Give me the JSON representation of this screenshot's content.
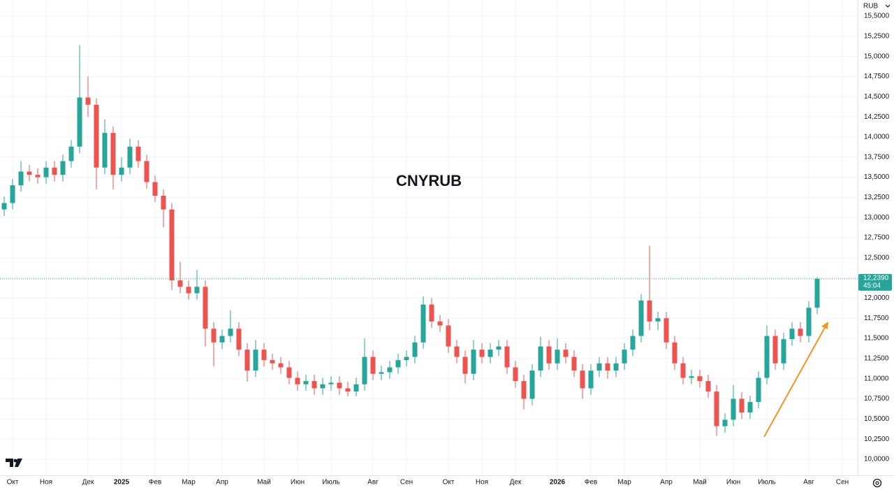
{
  "chart_data": {
    "type": "candlestick",
    "title": "CNYRUB",
    "currency": "RUB",
    "categories": [
      null,
      "Окт",
      null,
      null,
      null,
      "Ноя",
      null,
      null,
      null,
      null,
      "Дек",
      null,
      null,
      null,
      "2025",
      null,
      null,
      null,
      "Фев",
      null,
      null,
      null,
      "Мар",
      null,
      null,
      null,
      "Апр",
      null,
      null,
      null,
      null,
      "Май",
      null,
      null,
      null,
      "Июн",
      null,
      null,
      null,
      "Июль",
      null,
      null,
      null,
      null,
      "Авг",
      null,
      null,
      null,
      "Сен",
      null,
      null,
      null,
      null,
      "Окт",
      null,
      null,
      null,
      "Ноя",
      null,
      null,
      null,
      "Дек",
      null,
      null,
      null,
      null,
      "2026",
      null,
      null,
      null,
      "Фев",
      null,
      null,
      null,
      "Мар",
      null,
      null,
      null,
      null,
      "Апр",
      null,
      null,
      null,
      "Май",
      null,
      null,
      null,
      "Июн",
      null,
      null,
      null,
      "Июль",
      null,
      null,
      null,
      null,
      "Авг",
      null,
      null,
      null,
      "Сен",
      null
    ],
    "open": [
      13.1,
      13.18,
      13.4,
      13.57,
      13.53,
      13.5,
      13.62,
      13.53,
      13.7,
      13.88,
      14.49,
      14.4,
      13.62,
      14.05,
      13.53,
      13.62,
      13.88,
      13.7,
      13.44,
      13.27,
      13.1,
      12.22,
      12.14,
      12.06,
      12.14,
      11.62,
      11.45,
      11.53,
      11.62,
      11.36,
      11.1,
      11.36,
      11.23,
      11.19,
      11.14,
      11.01,
      10.93,
      10.97,
      10.88,
      10.93,
      10.95,
      10.88,
      10.84,
      10.93,
      11.27,
      11.06,
      11.08,
      11.14,
      11.23,
      11.27,
      11.45,
      11.92,
      11.71,
      11.66,
      11.4,
      11.27,
      11.06,
      11.36,
      11.27,
      11.36,
      11.4,
      11.14,
      10.97,
      10.75,
      11.1,
      11.4,
      11.19,
      11.36,
      11.27,
      11.1,
      10.88,
      11.1,
      11.19,
      11.1,
      11.19,
      11.36,
      11.53,
      11.97,
      11.71,
      11.75,
      11.45,
      11.19,
      11.01,
      11.03,
      10.97,
      10.84,
      10.41,
      10.49,
      10.75,
      10.58,
      10.71,
      11.01,
      11.53,
      11.19,
      11.49,
      11.62,
      11.53,
      11.88,
      null,
      null,
      null,
      null
    ],
    "high": [
      13.26,
      13.48,
      13.7,
      13.65,
      13.61,
      13.7,
      13.7,
      13.78,
      13.96,
      15.14,
      14.75,
      14.48,
      14.22,
      14.13,
      13.75,
      13.98,
      13.96,
      13.78,
      13.52,
      13.35,
      13.18,
      12.45,
      12.22,
      12.35,
      12.22,
      11.7,
      11.61,
      11.85,
      11.7,
      11.44,
      11.48,
      11.44,
      11.31,
      11.27,
      11.22,
      11.09,
      11.05,
      11.05,
      11.01,
      11.03,
      11.03,
      10.96,
      11.01,
      11.5,
      11.35,
      11.16,
      11.22,
      11.31,
      11.35,
      11.53,
      12.02,
      12.0,
      11.79,
      11.74,
      11.48,
      11.35,
      11.48,
      11.44,
      11.44,
      11.48,
      11.48,
      11.22,
      11.05,
      11.18,
      11.52,
      11.48,
      11.5,
      11.44,
      11.35,
      11.18,
      11.18,
      11.27,
      11.27,
      11.27,
      11.44,
      11.61,
      12.05,
      12.65,
      11.83,
      11.83,
      11.53,
      11.27,
      11.11,
      11.11,
      11.05,
      10.92,
      10.57,
      10.92,
      10.83,
      10.79,
      11.09,
      11.66,
      11.61,
      11.57,
      11.7,
      11.7,
      11.96,
      12.26,
      null,
      null,
      null,
      null
    ],
    "low": [
      13.02,
      13.1,
      13.32,
      13.45,
      13.42,
      13.42,
      13.45,
      13.45,
      13.62,
      13.8,
      14.25,
      13.35,
      13.54,
      13.35,
      13.45,
      13.54,
      13.62,
      13.36,
      13.19,
      12.88,
      12.1,
      12.06,
      11.98,
      11.98,
      11.4,
      11.15,
      11.37,
      11.45,
      11.28,
      10.96,
      11.02,
      11.15,
      11.11,
      11.06,
      10.93,
      10.85,
      10.85,
      10.8,
      10.8,
      10.85,
      10.8,
      10.78,
      10.78,
      10.85,
      10.98,
      10.98,
      11.0,
      11.06,
      11.15,
      11.19,
      11.37,
      11.63,
      11.58,
      11.32,
      11.19,
      10.94,
      10.98,
      11.19,
      11.19,
      11.28,
      11.06,
      10.89,
      10.62,
      10.67,
      11.02,
      11.11,
      11.11,
      11.19,
      11.02,
      10.75,
      10.8,
      11.02,
      11.0,
      11.02,
      11.11,
      11.28,
      11.45,
      11.6,
      11.6,
      11.37,
      11.11,
      10.93,
      10.93,
      10.89,
      10.76,
      10.29,
      10.33,
      10.41,
      10.5,
      10.5,
      10.63,
      10.93,
      11.11,
      11.11,
      11.41,
      11.45,
      11.45,
      11.8,
      null,
      null,
      null,
      null
    ],
    "close": [
      13.18,
      13.4,
      13.57,
      13.53,
      13.5,
      13.62,
      13.53,
      13.7,
      13.88,
      14.49,
      14.4,
      13.62,
      14.05,
      13.53,
      13.62,
      13.88,
      13.7,
      13.44,
      13.27,
      13.1,
      12.22,
      12.14,
      12.06,
      12.14,
      11.62,
      11.45,
      11.53,
      11.62,
      11.36,
      11.1,
      11.36,
      11.23,
      11.19,
      11.14,
      11.01,
      10.93,
      10.97,
      10.88,
      10.93,
      10.95,
      10.88,
      10.84,
      10.93,
      11.27,
      11.06,
      11.08,
      11.14,
      11.23,
      11.27,
      11.45,
      11.92,
      11.71,
      11.66,
      11.4,
      11.27,
      11.06,
      11.36,
      11.27,
      11.36,
      11.4,
      11.14,
      10.97,
      10.75,
      11.1,
      11.4,
      11.19,
      11.36,
      11.27,
      11.1,
      10.88,
      11.1,
      11.19,
      11.1,
      11.19,
      11.36,
      11.53,
      11.97,
      11.71,
      11.75,
      11.45,
      11.19,
      11.01,
      11.03,
      10.97,
      10.84,
      10.41,
      10.49,
      10.75,
      10.58,
      10.71,
      11.01,
      11.53,
      11.19,
      11.49,
      11.62,
      11.53,
      11.88,
      12.239,
      null,
      null,
      null,
      null
    ],
    "up_color": "#26a69a",
    "down_color": "#ef5350",
    "last_price": {
      "value": 12.239,
      "label": "12,2390"
    },
    "countdown": "45:04",
    "ylim": [
      9.8,
      15.7
    ],
    "yticks": [
      {
        "value": 10.0,
        "label": "10,0000"
      },
      {
        "value": 10.25,
        "label": "10,2500"
      },
      {
        "value": 10.5,
        "label": "10,5000"
      },
      {
        "value": 10.75,
        "label": "10,7500"
      },
      {
        "value": 11.0,
        "label": "11,0000"
      },
      {
        "value": 11.25,
        "label": "11,2500"
      },
      {
        "value": 11.5,
        "label": "11,5000"
      },
      {
        "value": 11.75,
        "label": "11,7500"
      },
      {
        "value": 12.0,
        "label": "12,0000"
      },
      {
        "value": 12.25,
        "label": "12,2500"
      },
      {
        "value": 12.5,
        "label": "12,5000"
      },
      {
        "value": 12.75,
        "label": "12,7500"
      },
      {
        "value": 13.0,
        "label": "13,0000"
      },
      {
        "value": 13.25,
        "label": "13,2500"
      },
      {
        "value": 13.5,
        "label": "13,5000"
      },
      {
        "value": 13.75,
        "label": "13,7500"
      },
      {
        "value": 14.0,
        "label": "14,0000"
      },
      {
        "value": 14.25,
        "label": "14,2500"
      },
      {
        "value": 14.5,
        "label": "14,5000"
      },
      {
        "value": 14.75,
        "label": "14,7500"
      },
      {
        "value": 15.0,
        "label": "15,0000"
      },
      {
        "value": 15.25,
        "label": "15,2500"
      },
      {
        "value": 15.5,
        "label": "15,5000"
      }
    ],
    "grid": true
  }
}
